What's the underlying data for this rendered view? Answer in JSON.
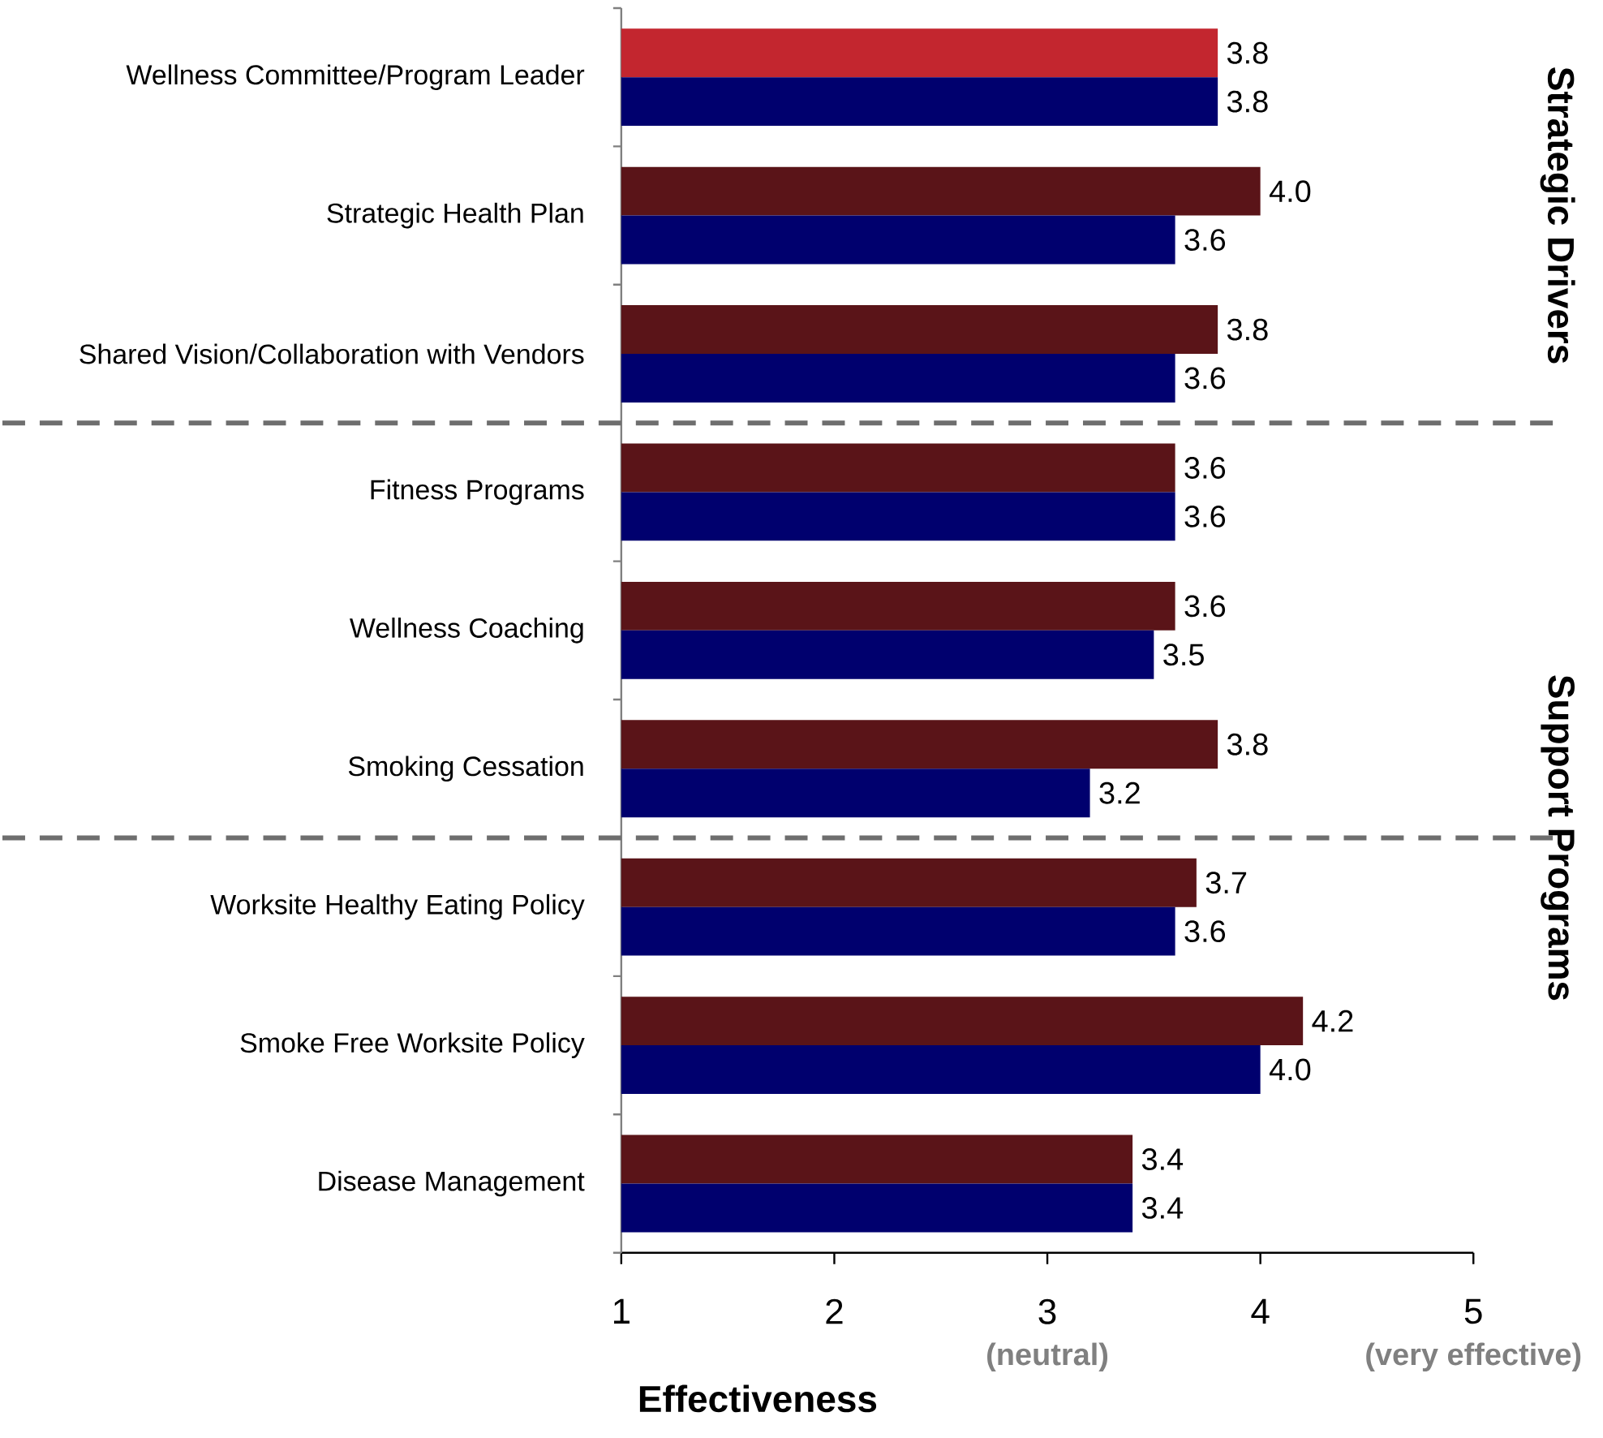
{
  "chart_data": {
    "type": "bar",
    "orientation": "horizontal",
    "xlabel": "Effectiveness",
    "categories": [
      "Wellness Committee/Program Leader",
      "Strategic Health Plan",
      "Shared Vision/Collaboration with Vendors",
      "Fitness Programs",
      "Wellness Coaching",
      "Smoking Cessation",
      "Worksite Healthy  Eating Policy",
      "Smoke Free Worksite Policy",
      "Disease Management"
    ],
    "series": [
      {
        "colors": [
          "#c3262f",
          "#5a1418",
          "#5a1418",
          "#5a1418",
          "#5a1418",
          "#5a1418",
          "#5a1418",
          "#5a1418",
          "#5a1418"
        ],
        "values": [
          3.8,
          4.0,
          3.8,
          3.6,
          3.6,
          3.8,
          3.7,
          4.2,
          3.4
        ],
        "value_labels": [
          "3.8",
          "4.0",
          "3.8",
          "3.6",
          "3.6",
          "3.8",
          "3.7",
          "4.2",
          "3.4"
        ]
      },
      {
        "color": "#00006e",
        "values": [
          3.8,
          3.6,
          3.6,
          3.6,
          3.5,
          3.2,
          3.6,
          4.0,
          3.4
        ],
        "value_labels": [
          "3.8",
          "3.6",
          "3.6",
          "3.6",
          "3.5",
          "3.2",
          "3.6",
          "4.0",
          "3.4"
        ]
      }
    ],
    "xlim": [
      1,
      5
    ],
    "xticks": [
      1,
      2,
      3,
      4,
      5
    ],
    "grid": false,
    "annotations": [
      "Strategic Drivers",
      "Support Programs",
      "(neutral)",
      "(very effective)"
    ]
  }
}
